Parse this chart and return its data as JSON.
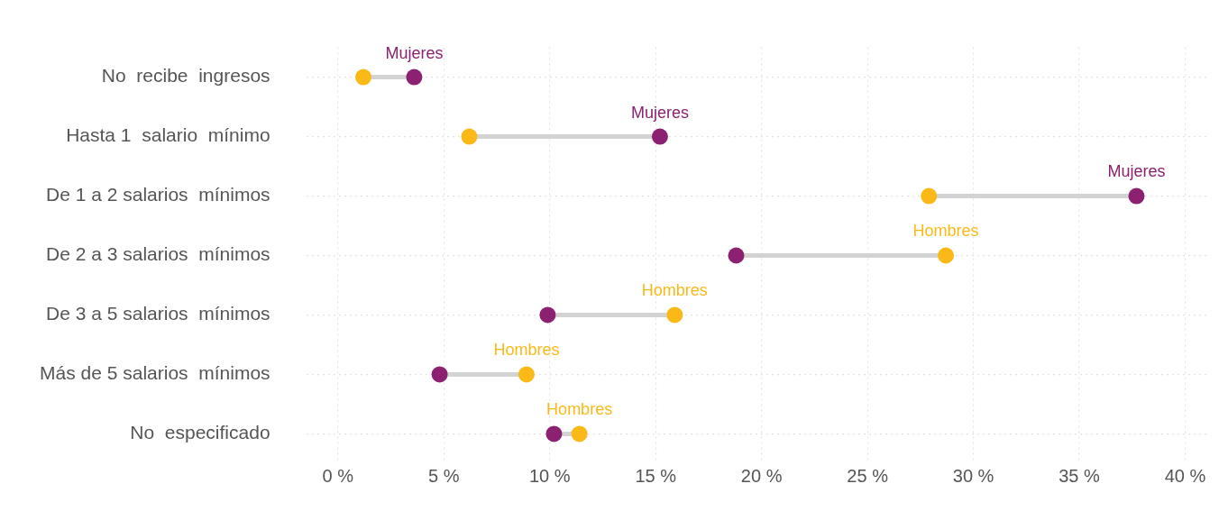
{
  "chart_data": {
    "type": "scatter",
    "categories": [
      "No  recibe  ingresos",
      "Hasta 1  salario  mínimo",
      "De 1 a 2 salarios  mínimos",
      "De 2 a 3 salarios  mínimos",
      "De 3 a 5 salarios  mínimos",
      "Más de 5 salarios  mínimos",
      "No  especificado"
    ],
    "series": [
      {
        "name": "Mujeres",
        "color": "#8b2170",
        "values": [
          3.6,
          15.2,
          37.7,
          18.8,
          9.9,
          4.8,
          10.2
        ]
      },
      {
        "name": "Hombres",
        "color": "#fbb918",
        "values": [
          1.2,
          6.2,
          27.9,
          28.7,
          15.9,
          8.9,
          11.4
        ]
      }
    ],
    "orientation": "horizontal",
    "xlim": [
      -1.5,
      41
    ],
    "xticks": [
      {
        "value": 0,
        "label": "0 %"
      },
      {
        "value": 5,
        "label": "5 %"
      },
      {
        "value": 10,
        "label": "10 %"
      },
      {
        "value": 15,
        "label": "15 %"
      },
      {
        "value": 20,
        "label": "20 %"
      },
      {
        "value": 25,
        "label": "25 %"
      },
      {
        "value": 30,
        "label": "30 %"
      },
      {
        "value": 35,
        "label": "35 %"
      },
      {
        "value": 40,
        "label": "40 %"
      }
    ],
    "grid": true,
    "legend": false,
    "marker": "circle"
  }
}
